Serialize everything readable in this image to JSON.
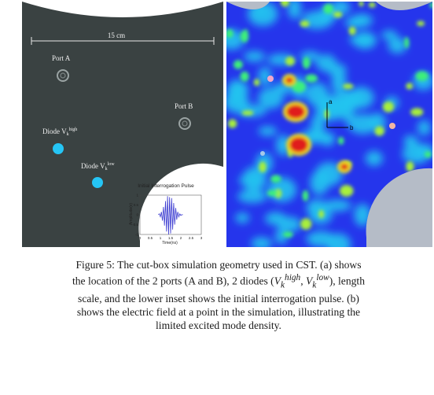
{
  "panel_a": {
    "scale_label": "15 cm",
    "port_a_label": "Port A",
    "port_b_label": "Port B",
    "diode_high_label": "Diode V",
    "diode_high_sub": "k",
    "diode_high_sup": "high",
    "diode_low_label": "Diode V",
    "diode_low_sub": "k",
    "diode_low_sup": "low",
    "inset": {
      "title": "Initial Interrogation Pulse",
      "xlabel": "Time(ns)",
      "ylabel": "Amplitude(v)",
      "x_ticks": [
        "0",
        "0.5",
        "1",
        "1.5",
        "2",
        "2.5",
        "3"
      ],
      "y_ticks": [
        "1",
        "0.5",
        "0",
        "-0.5",
        "-1"
      ]
    },
    "colors": {
      "background": "#3a4242",
      "diode": "#25c5f5"
    }
  },
  "chart_data": {
    "type": "line",
    "title": "Initial Interrogation Pulse",
    "xlabel": "Time(ns)",
    "ylabel": "Amplitude(v)",
    "xlim": [
      0,
      3
    ],
    "ylim": [
      -1,
      1
    ],
    "series": [
      {
        "x": [
          0.9,
          0.95,
          1.0,
          1.05,
          1.1,
          1.15,
          1.2,
          1.25,
          1.3,
          1.35,
          1.4,
          1.45,
          1.5,
          1.55,
          1.6,
          1.65,
          1.7,
          1.75,
          1.8,
          1.85,
          1.9,
          1.95,
          2.0,
          2.05,
          2.1
        ],
        "y": [
          0,
          0.05,
          -0.1,
          0.15,
          -0.3,
          0.4,
          -0.55,
          0.7,
          -0.85,
          0.95,
          -1.0,
          0.9,
          -0.95,
          0.85,
          -0.75,
          0.6,
          -0.5,
          0.35,
          -0.25,
          0.15,
          -0.1,
          0.05,
          -0.03,
          0.01,
          0
        ]
      }
    ]
  },
  "panel_b": {
    "label_a": "a",
    "label_b": "b",
    "colors": {
      "background": "#2535ec",
      "edge": "#b5bcc7"
    }
  },
  "caption": {
    "line1": "Figure 5: The cut-box simulation geometry used in CST. (a) shows",
    "line2_pre": "the location of the 2 ports (A and B), 2 diodes (",
    "v1": "V",
    "v1_sub": "k",
    "v1_sup": "high",
    "sep": ", ",
    "v2": "V",
    "v2_sub": "k",
    "v2_sup": "low",
    "line2_post": "), length",
    "line3": "scale, and the lower inset shows the initial interrogation pulse. (b)",
    "line4": "shows the electric field at a point in the simulation, illustrating the",
    "line5": "limited excited mode density."
  }
}
